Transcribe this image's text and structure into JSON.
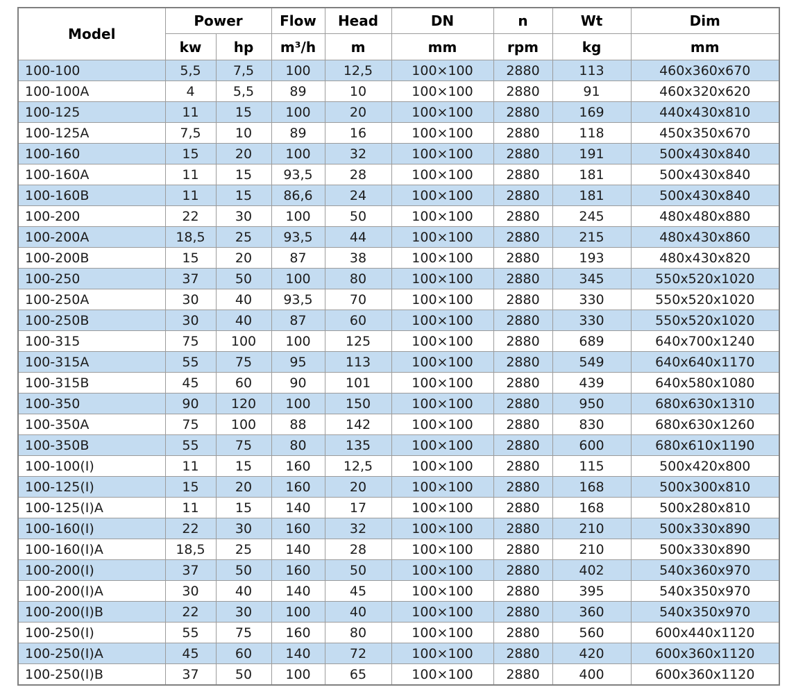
{
  "table": {
    "header": {
      "model": "Model",
      "power": "Power",
      "kw": "kw",
      "hp": "hp",
      "flow": "Flow",
      "flow_unit": "m³/h",
      "head": "Head",
      "head_unit": "m",
      "dn": "DN",
      "dn_unit": "mm",
      "n": "n",
      "n_unit": "rpm",
      "wt": "Wt",
      "wt_unit": "kg",
      "dim": "Dim",
      "dim_unit": "mm"
    },
    "rows": [
      [
        "100-100",
        "5,5",
        "7,5",
        "100",
        "12,5",
        "100×100",
        "2880",
        "113",
        "460x360x670"
      ],
      [
        "100-100A",
        "4",
        "5,5",
        "89",
        "10",
        "100×100",
        "2880",
        "91",
        "460x320x620"
      ],
      [
        "100-125",
        "11",
        "15",
        "100",
        "20",
        "100×100",
        "2880",
        "169",
        "440x430x810"
      ],
      [
        "100-125A",
        "7,5",
        "10",
        "89",
        "16",
        "100×100",
        "2880",
        "118",
        "450x350x670"
      ],
      [
        "100-160",
        "15",
        "20",
        "100",
        "32",
        "100×100",
        "2880",
        "191",
        "500x430x840"
      ],
      [
        "100-160A",
        "11",
        "15",
        "93,5",
        "28",
        "100×100",
        "2880",
        "181",
        "500x430x840"
      ],
      [
        "100-160B",
        "11",
        "15",
        "86,6",
        "24",
        "100×100",
        "2880",
        "181",
        "500x430x840"
      ],
      [
        "100-200",
        "22",
        "30",
        "100",
        "50",
        "100×100",
        "2880",
        "245",
        "480x480x880"
      ],
      [
        "100-200A",
        "18,5",
        "25",
        "93,5",
        "44",
        "100×100",
        "2880",
        "215",
        "480x430x860"
      ],
      [
        "100-200B",
        "15",
        "20",
        "87",
        "38",
        "100×100",
        "2880",
        "193",
        "480x430x820"
      ],
      [
        "100-250",
        "37",
        "50",
        "100",
        "80",
        "100×100",
        "2880",
        "345",
        "550x520x1020"
      ],
      [
        "100-250A",
        "30",
        "40",
        "93,5",
        "70",
        "100×100",
        "2880",
        "330",
        "550x520x1020"
      ],
      [
        "100-250B",
        "30",
        "40",
        "87",
        "60",
        "100×100",
        "2880",
        "330",
        "550x520x1020"
      ],
      [
        "100-315",
        "75",
        "100",
        "100",
        "125",
        "100×100",
        "2880",
        "689",
        "640x700x1240"
      ],
      [
        "100-315A",
        "55",
        "75",
        "95",
        "113",
        "100×100",
        "2880",
        "549",
        "640x640x1170"
      ],
      [
        "100-315B",
        "45",
        "60",
        "90",
        "101",
        "100×100",
        "2880",
        "439",
        "640x580x1080"
      ],
      [
        "100-350",
        "90",
        "120",
        "100",
        "150",
        "100×100",
        "2880",
        "950",
        "680x630x1310"
      ],
      [
        "100-350A",
        "75",
        "100",
        "88",
        "142",
        "100×100",
        "2880",
        "830",
        "680x630x1260"
      ],
      [
        "100-350B",
        "55",
        "75",
        "80",
        "135",
        "100×100",
        "2880",
        "600",
        "680x610x1190"
      ],
      [
        "100-100(I)",
        "11",
        "15",
        "160",
        "12,5",
        "100×100",
        "2880",
        "115",
        "500x420x800"
      ],
      [
        "100-125(I)",
        "15",
        "20",
        "160",
        "20",
        "100×100",
        "2880",
        "168",
        "500x300x810"
      ],
      [
        "100-125(I)A",
        "11",
        "15",
        "140",
        "17",
        "100×100",
        "2880",
        "168",
        "500x280x810"
      ],
      [
        "100-160(I)",
        "22",
        "30",
        "160",
        "32",
        "100×100",
        "2880",
        "210",
        "500x330x890"
      ],
      [
        "100-160(I)A",
        "18,5",
        "25",
        "140",
        "28",
        "100×100",
        "2880",
        "210",
        "500x330x890"
      ],
      [
        "100-200(I)",
        "37",
        "50",
        "160",
        "50",
        "100×100",
        "2880",
        "402",
        "540x360x970"
      ],
      [
        "100-200(I)A",
        "30",
        "40",
        "140",
        "45",
        "100×100",
        "2880",
        "395",
        "540x350x970"
      ],
      [
        "100-200(I)B",
        "22",
        "30",
        "100",
        "40",
        "100×100",
        "2880",
        "360",
        "540x350x970"
      ],
      [
        "100-250(I)",
        "55",
        "75",
        "160",
        "80",
        "100×100",
        "2880",
        "560",
        "600x440x1120"
      ],
      [
        "100-250(I)A",
        "45",
        "60",
        "140",
        "72",
        "100×100",
        "2880",
        "420",
        "600x360x1120"
      ],
      [
        "100-250(I)B",
        "37",
        "50",
        "100",
        "65",
        "100×100",
        "2880",
        "400",
        "600x360x1120"
      ]
    ]
  },
  "colors": {
    "row_alt_bg": "#c4dcf1",
    "border_inner": "#9b9b9b",
    "border_outer": "#7f7f7f",
    "text": "#1c1c1c",
    "header_text": "#000000",
    "page_bg": "#ffffff"
  }
}
